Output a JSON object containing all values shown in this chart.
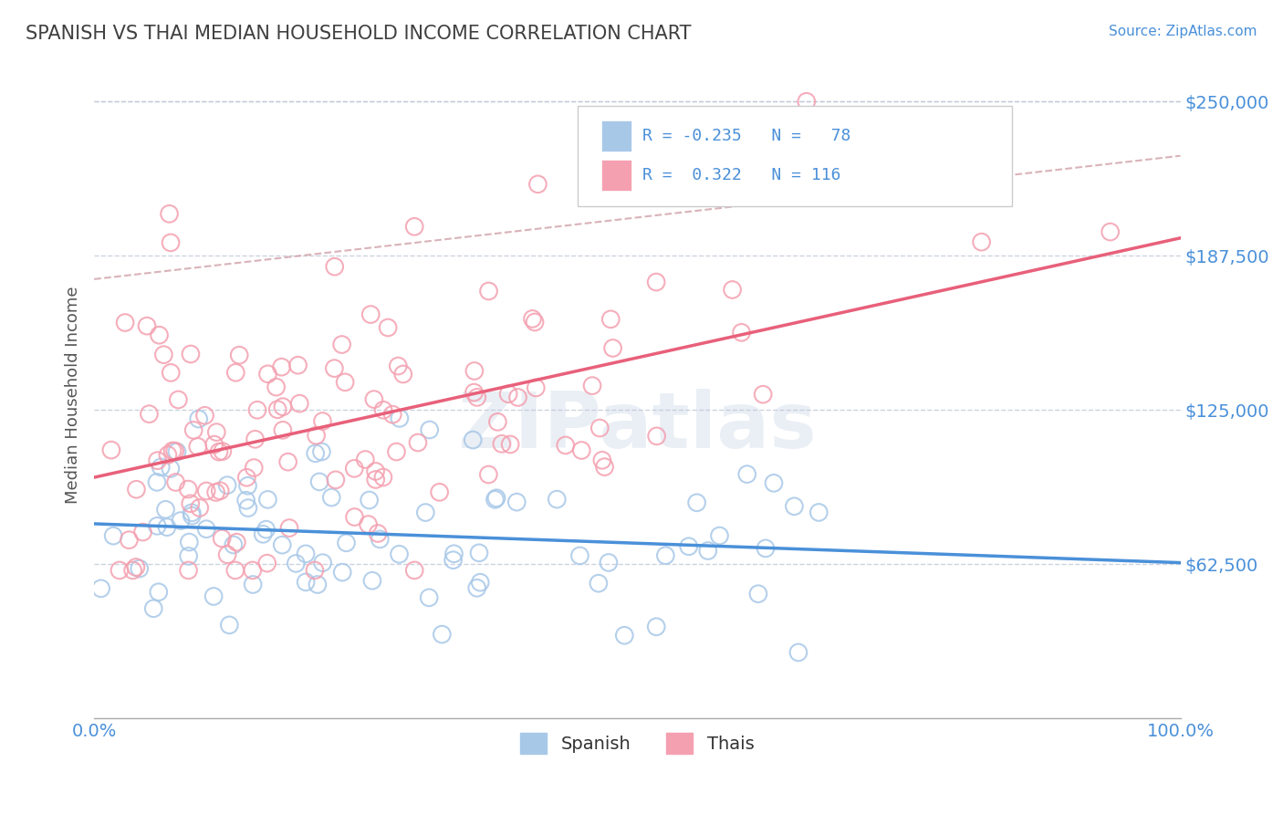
{
  "title": "SPANISH VS THAI MEDIAN HOUSEHOLD INCOME CORRELATION CHART",
  "source_text": "Source: ZipAtlas.com",
  "xlabel": "",
  "ylabel": "Median Household Income",
  "xlim": [
    0.0,
    1.0
  ],
  "ylim": [
    0,
    262500
  ],
  "yticks": [
    62500,
    125000,
    187500,
    250000
  ],
  "ytick_labels": [
    "$62,500",
    "$125,000",
    "$187,500",
    "$250,000"
  ],
  "xticks": [
    0.0,
    1.0
  ],
  "xtick_labels": [
    "0.0%",
    "100.0%"
  ],
  "spanish_R": -0.235,
  "spanish_N": 78,
  "thai_R": 0.322,
  "thai_N": 116,
  "spanish_color": "#a8c8e8",
  "thai_color": "#f4a0b0",
  "spanish_line_color": "#4a90d9",
  "thai_line_color": "#e8607a",
  "dashed_line_color": "#d0a0a8",
  "background_color": "#ffffff",
  "grid_color": "#c0c8d8",
  "title_color": "#404040",
  "axis_label_color": "#4a90d9",
  "legend_R_color": "#4a90d9",
  "watermark_text": "ZIPatlas"
}
